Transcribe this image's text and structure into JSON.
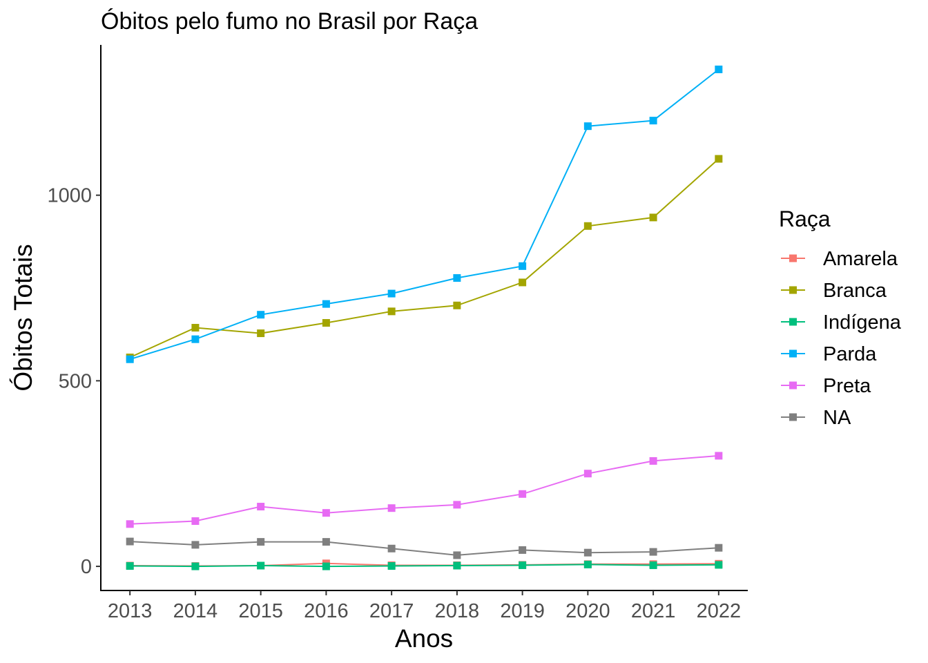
{
  "chart_data": {
    "type": "line",
    "title": "Óbitos pelo fumo no Brasil por Raça",
    "xlabel": "Anos",
    "ylabel": "Óbitos Totais",
    "x": [
      2013,
      2014,
      2015,
      2016,
      2017,
      2018,
      2019,
      2020,
      2021,
      2022
    ],
    "x_ticks": [
      "2013",
      "2014",
      "2015",
      "2016",
      "2017",
      "2018",
      "2019",
      "2020",
      "2021",
      "2022"
    ],
    "y_ticks": [
      0,
      500,
      1000
    ],
    "y_tick_labels": [
      "0",
      "500",
      "1000"
    ],
    "ylim": [
      -65,
      1405
    ],
    "grid": false,
    "legend": {
      "title": "Raça",
      "placement": "right"
    },
    "series": [
      {
        "name": "Amarela",
        "color": "#F8766D",
        "values": [
          2,
          1,
          2,
          8,
          3,
          3,
          4,
          6,
          6,
          7
        ]
      },
      {
        "name": "Branca",
        "color": "#A3A500",
        "values": [
          563,
          643,
          628,
          656,
          687,
          703,
          765,
          917,
          940,
          1098
        ]
      },
      {
        "name": "Indígena",
        "color": "#00BF7D",
        "values": [
          1,
          0,
          2,
          0,
          1,
          2,
          3,
          5,
          3,
          4
        ]
      },
      {
        "name": "Parda",
        "color": "#00B0F6",
        "values": [
          558,
          612,
          678,
          707,
          735,
          777,
          809,
          1186,
          1201,
          1339
        ]
      },
      {
        "name": "Preta",
        "color": "#E76BF3",
        "values": [
          114,
          122,
          161,
          144,
          157,
          166,
          195,
          250,
          284,
          298
        ]
      },
      {
        "name": "NA",
        "color": "#7F7F7F",
        "values": [
          67,
          58,
          66,
          66,
          48,
          30,
          44,
          37,
          39,
          50
        ]
      }
    ]
  }
}
